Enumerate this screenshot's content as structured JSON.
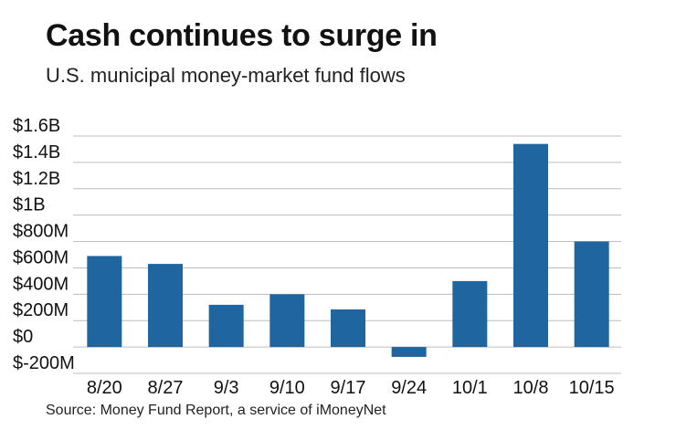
{
  "header": {
    "title": "Cash continues to surge in",
    "subtitle": "U.S. municipal money-market fund flows"
  },
  "footer": {
    "source": "Source: Money Fund Report, a service of iMoneyNet"
  },
  "colors": {
    "bar": "#1f65a0",
    "grid": "#bdbdbd"
  },
  "chart_data": {
    "type": "bar",
    "title": "Cash continues to surge in",
    "subtitle": "U.S. municipal money-market fund flows",
    "xlabel": "",
    "ylabel": "",
    "unit": "millions USD",
    "categories": [
      "8/20",
      "8/27",
      "9/3",
      "9/10",
      "9/17",
      "9/24",
      "10/1",
      "10/8",
      "10/15"
    ],
    "values": [
      690,
      630,
      320,
      400,
      285,
      -75,
      500,
      1540,
      800
    ],
    "ylim": [
      -200,
      1600
    ],
    "yticks": [
      -200,
      0,
      200,
      400,
      600,
      800,
      1000,
      1200,
      1400,
      1600
    ],
    "ytick_labels": [
      "$-200M",
      "$0",
      "$200M",
      "$400M",
      "$600M",
      "$800M",
      "$1B",
      "$1.2B",
      "$1.4B",
      "$1.6B"
    ],
    "grid": true,
    "legend": "none"
  }
}
